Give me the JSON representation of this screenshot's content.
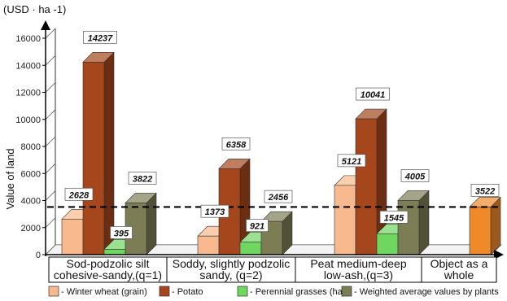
{
  "chart_data": {
    "type": "bar",
    "unit_label": "(USD · ha -1)",
    "ylabel": "Value of land",
    "ylim": [
      0,
      16000
    ],
    "yticks": [
      0,
      2000,
      4000,
      6000,
      8000,
      10000,
      12000,
      14000,
      16000
    ],
    "categories": [
      {
        "lines": [
          "Sod-podzolic silt",
          "cohesive-sandy,(q=1)"
        ]
      },
      {
        "lines": [
          "Soddy, slightly podzolic",
          "sandy, (q=2)"
        ]
      },
      {
        "lines": [
          "Peat medium-deep",
          "low-ash,(q=3)"
        ]
      },
      {
        "lines": [
          "Object as a",
          "whole"
        ]
      }
    ],
    "series": [
      {
        "name": "- Winter wheat (grain)",
        "color": "#f9b98e",
        "values": [
          2628,
          1373,
          5121,
          null
        ]
      },
      {
        "name": "- Potato",
        "color": "#a5461c",
        "values": [
          14237,
          6358,
          10041,
          null
        ]
      },
      {
        "name": "- Perennial grasses (hay)",
        "color": "#6fd660",
        "values": [
          395,
          921,
          1545,
          null
        ]
      },
      {
        "name": "- Weighted average values by plants",
        "color": "#7d7d55",
        "values": [
          3822,
          2456,
          4005,
          null
        ]
      }
    ],
    "whole": {
      "value": 3522,
      "color": "#ee8a2a"
    },
    "reference_line": {
      "value": 3522,
      "style": "dashed"
    },
    "legend_position": "bottom"
  }
}
